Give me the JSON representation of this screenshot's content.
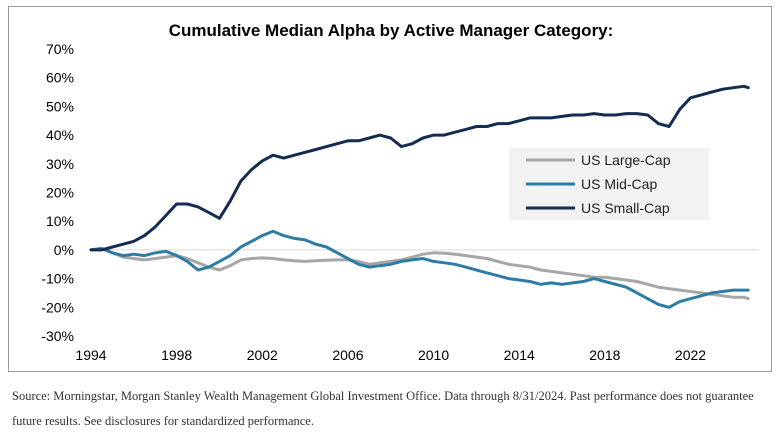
{
  "chart_data": {
    "type": "line",
    "title": "Cumulative Median Alpha by Active Manager Category:",
    "xlabel": "",
    "ylabel": "",
    "xlim": [
      1994,
      2025.2
    ],
    "ylim": [
      -0.3,
      0.7
    ],
    "x_ticks": [
      "1994",
      "1998",
      "2002",
      "2006",
      "2010",
      "2014",
      "2018",
      "2022"
    ],
    "y_ticks": [
      "70%",
      "60%",
      "50%",
      "40%",
      "30%",
      "20%",
      "10%",
      "0%",
      "-10%",
      "-20%",
      "-30%"
    ],
    "grid": "none",
    "legend_position": "right-middle",
    "series": [
      {
        "name": "US Large-Cap",
        "color": "#a6a6a6",
        "points": [
          [
            1994.0,
            0.0
          ],
          [
            1994.5,
            0.005
          ],
          [
            1995.0,
            -0.01
          ],
          [
            1995.5,
            -0.025
          ],
          [
            1996.0,
            -0.03
          ],
          [
            1996.5,
            -0.035
          ],
          [
            1997.0,
            -0.03
          ],
          [
            1997.5,
            -0.025
          ],
          [
            1998.0,
            -0.02
          ],
          [
            1998.5,
            -0.03
          ],
          [
            1999.0,
            -0.045
          ],
          [
            1999.5,
            -0.06
          ],
          [
            2000.0,
            -0.07
          ],
          [
            2000.5,
            -0.055
          ],
          [
            2001.0,
            -0.035
          ],
          [
            2001.5,
            -0.03
          ],
          [
            2002.0,
            -0.028
          ],
          [
            2002.5,
            -0.03
          ],
          [
            2003.0,
            -0.035
          ],
          [
            2003.5,
            -0.038
          ],
          [
            2004.0,
            -0.04
          ],
          [
            2004.5,
            -0.038
          ],
          [
            2005.0,
            -0.036
          ],
          [
            2005.5,
            -0.035
          ],
          [
            2006.0,
            -0.035
          ],
          [
            2006.5,
            -0.04
          ],
          [
            2007.0,
            -0.05
          ],
          [
            2007.5,
            -0.045
          ],
          [
            2008.0,
            -0.04
          ],
          [
            2008.5,
            -0.035
          ],
          [
            2009.0,
            -0.025
          ],
          [
            2009.5,
            -0.015
          ],
          [
            2010.0,
            -0.01
          ],
          [
            2010.5,
            -0.012
          ],
          [
            2011.0,
            -0.015
          ],
          [
            2011.5,
            -0.02
          ],
          [
            2012.0,
            -0.025
          ],
          [
            2012.5,
            -0.03
          ],
          [
            2013.0,
            -0.04
          ],
          [
            2013.5,
            -0.05
          ],
          [
            2014.0,
            -0.055
          ],
          [
            2014.5,
            -0.06
          ],
          [
            2015.0,
            -0.07
          ],
          [
            2015.5,
            -0.075
          ],
          [
            2016.0,
            -0.08
          ],
          [
            2016.5,
            -0.085
          ],
          [
            2017.0,
            -0.09
          ],
          [
            2017.5,
            -0.095
          ],
          [
            2018.0,
            -0.095
          ],
          [
            2018.5,
            -0.1
          ],
          [
            2019.0,
            -0.105
          ],
          [
            2019.5,
            -0.11
          ],
          [
            2020.0,
            -0.12
          ],
          [
            2020.5,
            -0.13
          ],
          [
            2021.0,
            -0.135
          ],
          [
            2021.5,
            -0.14
          ],
          [
            2022.0,
            -0.145
          ],
          [
            2022.5,
            -0.15
          ],
          [
            2023.0,
            -0.155
          ],
          [
            2023.5,
            -0.16
          ],
          [
            2024.0,
            -0.165
          ],
          [
            2024.5,
            -0.165
          ],
          [
            2024.7,
            -0.17
          ]
        ]
      },
      {
        "name": "US Mid-Cap",
        "color": "#2e7ca6",
        "points": [
          [
            1994.0,
            0.0
          ],
          [
            1994.5,
            0.005
          ],
          [
            1995.0,
            -0.01
          ],
          [
            1995.5,
            -0.02
          ],
          [
            1996.0,
            -0.015
          ],
          [
            1996.5,
            -0.02
          ],
          [
            1997.0,
            -0.01
          ],
          [
            1997.5,
            -0.005
          ],
          [
            1998.0,
            -0.02
          ],
          [
            1998.5,
            -0.04
          ],
          [
            1999.0,
            -0.07
          ],
          [
            1999.5,
            -0.06
          ],
          [
            2000.0,
            -0.04
          ],
          [
            2000.5,
            -0.02
          ],
          [
            2001.0,
            0.01
          ],
          [
            2001.5,
            0.03
          ],
          [
            2002.0,
            0.05
          ],
          [
            2002.5,
            0.065
          ],
          [
            2003.0,
            0.05
          ],
          [
            2003.5,
            0.04
          ],
          [
            2004.0,
            0.035
          ],
          [
            2004.5,
            0.02
          ],
          [
            2005.0,
            0.01
          ],
          [
            2005.5,
            -0.01
          ],
          [
            2006.0,
            -0.03
          ],
          [
            2006.5,
            -0.05
          ],
          [
            2007.0,
            -0.06
          ],
          [
            2007.5,
            -0.055
          ],
          [
            2008.0,
            -0.05
          ],
          [
            2008.5,
            -0.04
          ],
          [
            2009.0,
            -0.035
          ],
          [
            2009.5,
            -0.03
          ],
          [
            2010.0,
            -0.04
          ],
          [
            2010.5,
            -0.045
          ],
          [
            2011.0,
            -0.05
          ],
          [
            2011.5,
            -0.06
          ],
          [
            2012.0,
            -0.07
          ],
          [
            2012.5,
            -0.08
          ],
          [
            2013.0,
            -0.09
          ],
          [
            2013.5,
            -0.1
          ],
          [
            2014.0,
            -0.105
          ],
          [
            2014.5,
            -0.11
          ],
          [
            2015.0,
            -0.12
          ],
          [
            2015.5,
            -0.115
          ],
          [
            2016.0,
            -0.12
          ],
          [
            2016.5,
            -0.115
          ],
          [
            2017.0,
            -0.11
          ],
          [
            2017.5,
            -0.1
          ],
          [
            2018.0,
            -0.11
          ],
          [
            2018.5,
            -0.12
          ],
          [
            2019.0,
            -0.13
          ],
          [
            2019.5,
            -0.15
          ],
          [
            2020.0,
            -0.17
          ],
          [
            2020.5,
            -0.19
          ],
          [
            2021.0,
            -0.2
          ],
          [
            2021.5,
            -0.18
          ],
          [
            2022.0,
            -0.17
          ],
          [
            2022.5,
            -0.16
          ],
          [
            2023.0,
            -0.15
          ],
          [
            2023.5,
            -0.145
          ],
          [
            2024.0,
            -0.14
          ],
          [
            2024.5,
            -0.14
          ],
          [
            2024.7,
            -0.14
          ]
        ]
      },
      {
        "name": "US Small-Cap",
        "color": "#152c52",
        "points": [
          [
            1994.0,
            0.0
          ],
          [
            1994.5,
            0.0
          ],
          [
            1995.0,
            0.01
          ],
          [
            1995.5,
            0.02
          ],
          [
            1996.0,
            0.03
          ],
          [
            1996.5,
            0.05
          ],
          [
            1997.0,
            0.08
          ],
          [
            1997.5,
            0.12
          ],
          [
            1998.0,
            0.16
          ],
          [
            1998.5,
            0.16
          ],
          [
            1999.0,
            0.15
          ],
          [
            1999.5,
            0.13
          ],
          [
            2000.0,
            0.11
          ],
          [
            2000.5,
            0.17
          ],
          [
            2001.0,
            0.24
          ],
          [
            2001.5,
            0.28
          ],
          [
            2002.0,
            0.31
          ],
          [
            2002.5,
            0.33
          ],
          [
            2003.0,
            0.32
          ],
          [
            2003.5,
            0.33
          ],
          [
            2004.0,
            0.34
          ],
          [
            2004.5,
            0.35
          ],
          [
            2005.0,
            0.36
          ],
          [
            2005.5,
            0.37
          ],
          [
            2006.0,
            0.38
          ],
          [
            2006.5,
            0.38
          ],
          [
            2007.0,
            0.39
          ],
          [
            2007.5,
            0.4
          ],
          [
            2008.0,
            0.39
          ],
          [
            2008.5,
            0.36
          ],
          [
            2009.0,
            0.37
          ],
          [
            2009.5,
            0.39
          ],
          [
            2010.0,
            0.4
          ],
          [
            2010.5,
            0.4
          ],
          [
            2011.0,
            0.41
          ],
          [
            2011.5,
            0.42
          ],
          [
            2012.0,
            0.43
          ],
          [
            2012.5,
            0.43
          ],
          [
            2013.0,
            0.44
          ],
          [
            2013.5,
            0.44
          ],
          [
            2014.0,
            0.45
          ],
          [
            2014.5,
            0.46
          ],
          [
            2015.0,
            0.46
          ],
          [
            2015.5,
            0.46
          ],
          [
            2016.0,
            0.465
          ],
          [
            2016.5,
            0.47
          ],
          [
            2017.0,
            0.47
          ],
          [
            2017.5,
            0.475
          ],
          [
            2018.0,
            0.47
          ],
          [
            2018.5,
            0.47
          ],
          [
            2019.0,
            0.475
          ],
          [
            2019.5,
            0.475
          ],
          [
            2020.0,
            0.47
          ],
          [
            2020.5,
            0.44
          ],
          [
            2021.0,
            0.43
          ],
          [
            2021.5,
            0.49
          ],
          [
            2022.0,
            0.53
          ],
          [
            2022.5,
            0.54
          ],
          [
            2023.0,
            0.55
          ],
          [
            2023.5,
            0.56
          ],
          [
            2024.0,
            0.565
          ],
          [
            2024.5,
            0.57
          ],
          [
            2024.7,
            0.565
          ]
        ]
      }
    ]
  },
  "source_note": "Source: Morningstar, Morgan Stanley Wealth Management Global Investment Office. Data through 8/31/2024. Past performance does not guarantee future results. See disclosures for standardized performance."
}
